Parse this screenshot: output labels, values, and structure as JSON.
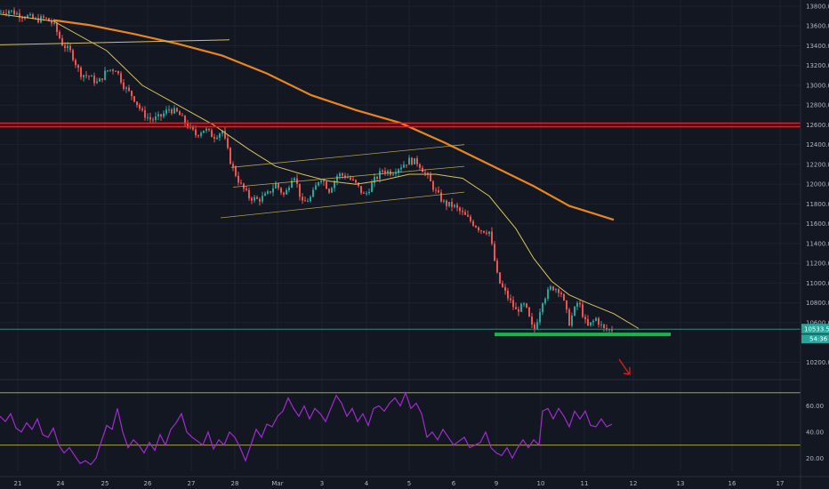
{
  "colors": {
    "background": "#131722",
    "grid": "#1e2230",
    "candle_up": "#26a69a",
    "candle_down": "#ef5350",
    "ma_long": "#e8861d",
    "ma_short": "#d8c15a",
    "resistance": "#e91e1e",
    "support": "#15b64a",
    "rsi": "#a12bd0",
    "rsi_band": "#a4a04a",
    "current_line": "#2f8a82",
    "arrow": "#e91e1e"
  },
  "chart_data": [
    {
      "type": "candlestick",
      "title": "",
      "ylim": [
        10150,
        13900
      ],
      "y_ticks": [
        "13800.0",
        "13600.0",
        "13400.0",
        "13200.0",
        "13000.0",
        "12800.0",
        "12600.0",
        "12400.0",
        "12200.0",
        "12000.0",
        "11800.0",
        "11600.0",
        "11400.0",
        "11200.0",
        "11000.0",
        "10800.0",
        "10600.0",
        "10200.0"
      ],
      "x_ticks": [
        "21",
        "24",
        "25",
        "26",
        "27",
        "28",
        "Mar",
        "3",
        "4",
        "5",
        "6",
        "9",
        "10",
        "11",
        "12",
        "13",
        "16",
        "17"
      ],
      "price_badge": "10533.5",
      "time_badge": "54:36",
      "support_level": 10480,
      "resistance_level": 12600,
      "close_path": [
        [
          0,
          13740
        ],
        [
          10,
          13760
        ],
        [
          20,
          13720
        ],
        [
          30,
          13700
        ],
        [
          40,
          13660
        ],
        [
          50,
          13680
        ],
        [
          60,
          13620
        ],
        [
          70,
          13420
        ],
        [
          80,
          13330
        ],
        [
          90,
          13120
        ],
        [
          100,
          13090
        ],
        [
          110,
          13020
        ],
        [
          120,
          13150
        ],
        [
          130,
          13170
        ],
        [
          140,
          12980
        ],
        [
          150,
          12880
        ],
        [
          160,
          12720
        ],
        [
          170,
          12650
        ],
        [
          180,
          12680
        ],
        [
          190,
          12760
        ],
        [
          200,
          12720
        ],
        [
          210,
          12600
        ],
        [
          220,
          12500
        ],
        [
          230,
          12560
        ],
        [
          240,
          12480
        ],
        [
          250,
          12540
        ],
        [
          260,
          12200
        ],
        [
          270,
          12000
        ],
        [
          280,
          11870
        ],
        [
          290,
          11840
        ],
        [
          300,
          11890
        ],
        [
          310,
          12000
        ],
        [
          320,
          11880
        ],
        [
          330,
          12120
        ],
        [
          340,
          11800
        ],
        [
          350,
          11870
        ],
        [
          360,
          12080
        ],
        [
          370,
          11940
        ],
        [
          380,
          12100
        ],
        [
          390,
          12080
        ],
        [
          400,
          12000
        ],
        [
          410,
          11880
        ],
        [
          420,
          12030
        ],
        [
          430,
          12140
        ],
        [
          440,
          12120
        ],
        [
          450,
          12180
        ],
        [
          460,
          12240
        ],
        [
          470,
          12220
        ],
        [
          480,
          12080
        ],
        [
          490,
          11920
        ],
        [
          500,
          11800
        ],
        [
          510,
          11780
        ],
        [
          520,
          11700
        ],
        [
          530,
          11620
        ],
        [
          540,
          11540
        ],
        [
          550,
          11520
        ],
        [
          560,
          11030
        ],
        [
          570,
          10870
        ],
        [
          580,
          10720
        ],
        [
          590,
          10780
        ],
        [
          600,
          10500
        ],
        [
          610,
          10830
        ],
        [
          620,
          10960
        ],
        [
          630,
          10930
        ],
        [
          640,
          10600
        ],
        [
          650,
          10820
        ],
        [
          660,
          10550
        ],
        [
          670,
          10640
        ],
        [
          680,
          10520
        ],
        [
          688,
          10533
        ]
      ],
      "range_line_x": [
        0,
        10,
        20,
        30,
        40,
        50,
        60,
        70,
        80,
        90,
        100,
        110,
        120,
        130,
        140,
        150,
        160,
        170,
        180,
        190,
        200,
        210,
        220,
        230,
        240,
        250,
        260,
        270,
        280,
        290,
        300,
        310,
        320,
        330,
        340,
        350,
        360,
        370,
        380,
        390,
        400,
        410,
        420,
        430,
        440,
        450,
        460,
        470,
        480,
        490,
        500,
        510,
        520,
        530,
        540,
        550,
        560,
        570,
        580,
        590,
        600,
        610,
        620,
        630,
        640,
        650,
        660,
        670,
        680
      ],
      "ma_short": [
        [
          0,
          13720
        ],
        [
          60,
          13650
        ],
        [
          120,
          13350
        ],
        [
          160,
          13000
        ],
        [
          200,
          12800
        ],
        [
          240,
          12600
        ],
        [
          280,
          12350
        ],
        [
          310,
          12180
        ],
        [
          340,
          12100
        ],
        [
          370,
          12030
        ],
        [
          400,
          12000
        ],
        [
          430,
          12040
        ],
        [
          460,
          12100
        ],
        [
          490,
          12100
        ],
        [
          520,
          12060
        ],
        [
          550,
          11880
        ],
        [
          580,
          11550
        ],
        [
          600,
          11250
        ],
        [
          620,
          11020
        ],
        [
          640,
          10880
        ],
        [
          660,
          10800
        ],
        [
          690,
          10690
        ],
        [
          718,
          10540
        ]
      ],
      "ma_long": [
        [
          60,
          13660
        ],
        [
          100,
          13610
        ],
        [
          150,
          13520
        ],
        [
          200,
          13420
        ],
        [
          250,
          13300
        ],
        [
          300,
          13120
        ],
        [
          350,
          12900
        ],
        [
          400,
          12750
        ],
        [
          450,
          12620
        ],
        [
          500,
          12420
        ],
        [
          550,
          12200
        ],
        [
          600,
          11980
        ],
        [
          640,
          11780
        ],
        [
          690,
          11640
        ]
      ],
      "trend_line": [
        [
          0,
          13410
        ],
        [
          258,
          13460
        ]
      ],
      "channel_upper": [
        [
          260,
          12170
        ],
        [
          522,
          12400
        ]
      ],
      "channel_mid": [
        [
          262,
          11970
        ],
        [
          522,
          12180
        ]
      ],
      "channel_lower": [
        [
          248,
          11660
        ],
        [
          522,
          11920
        ]
      ]
    },
    {
      "type": "line",
      "title": "",
      "ylim": [
        10,
        78
      ],
      "y_ticks": [
        "60.00",
        "40.00",
        "20.00"
      ],
      "upper_band": 70,
      "lower_band": 30,
      "series": [
        {
          "values": [
            [
              0,
              52
            ],
            [
              6,
              48
            ],
            [
              12,
              54
            ],
            [
              18,
              43
            ],
            [
              24,
              40
            ],
            [
              30,
              47
            ],
            [
              36,
              42
            ],
            [
              42,
              50
            ],
            [
              48,
              38
            ],
            [
              54,
              36
            ],
            [
              60,
              43
            ],
            [
              66,
              30
            ],
            [
              72,
              24
            ],
            [
              78,
              28
            ],
            [
              84,
              22
            ],
            [
              90,
              16
            ],
            [
              96,
              18
            ],
            [
              102,
              15
            ],
            [
              108,
              20
            ],
            [
              114,
              33
            ],
            [
              120,
              45
            ],
            [
              126,
              42
            ],
            [
              132,
              58
            ],
            [
              138,
              40
            ],
            [
              144,
              28
            ],
            [
              150,
              34
            ],
            [
              156,
              30
            ],
            [
              162,
              24
            ],
            [
              168,
              32
            ],
            [
              174,
              26
            ],
            [
              180,
              38
            ],
            [
              186,
              30
            ],
            [
              192,
              42
            ],
            [
              198,
              47
            ],
            [
              204,
              54
            ],
            [
              210,
              40
            ],
            [
              216,
              36
            ],
            [
              222,
              33
            ],
            [
              228,
              30
            ],
            [
              234,
              40
            ],
            [
              240,
              27
            ],
            [
              246,
              34
            ],
            [
              252,
              30
            ],
            [
              258,
              40
            ],
            [
              264,
              36
            ],
            [
              270,
              28
            ],
            [
              276,
              18
            ],
            [
              282,
              30
            ],
            [
              288,
              42
            ],
            [
              294,
              36
            ],
            [
              300,
              46
            ],
            [
              306,
              44
            ],
            [
              312,
              52
            ],
            [
              318,
              56
            ],
            [
              324,
              66
            ],
            [
              330,
              58
            ],
            [
              336,
              52
            ],
            [
              342,
              60
            ],
            [
              348,
              50
            ],
            [
              354,
              58
            ],
            [
              360,
              54
            ],
            [
              366,
              48
            ],
            [
              372,
              58
            ],
            [
              378,
              68
            ],
            [
              384,
              62
            ],
            [
              390,
              52
            ],
            [
              396,
              58
            ],
            [
              402,
              48
            ],
            [
              408,
              54
            ],
            [
              414,
              45
            ],
            [
              420,
              58
            ],
            [
              426,
              60
            ],
            [
              432,
              56
            ],
            [
              438,
              62
            ],
            [
              444,
              66
            ],
            [
              450,
              60
            ],
            [
              456,
              70
            ],
            [
              462,
              58
            ],
            [
              468,
              62
            ],
            [
              474,
              54
            ],
            [
              480,
              36
            ],
            [
              486,
              40
            ],
            [
              492,
              34
            ],
            [
              498,
              42
            ],
            [
              504,
              36
            ],
            [
              510,
              30
            ],
            [
              516,
              33
            ],
            [
              522,
              36
            ],
            [
              528,
              28
            ],
            [
              534,
              30
            ],
            [
              540,
              32
            ],
            [
              546,
              40
            ],
            [
              552,
              28
            ],
            [
              558,
              24
            ],
            [
              564,
              22
            ],
            [
              570,
              28
            ],
            [
              576,
              20
            ],
            [
              582,
              28
            ],
            [
              588,
              34
            ],
            [
              594,
              28
            ],
            [
              600,
              34
            ],
            [
              606,
              30
            ],
            [
              610,
              56
            ],
            [
              616,
              58
            ],
            [
              622,
              50
            ],
            [
              628,
              58
            ],
            [
              634,
              52
            ],
            [
              640,
              44
            ],
            [
              646,
              56
            ],
            [
              652,
              50
            ],
            [
              658,
              56
            ],
            [
              664,
              45
            ],
            [
              670,
              44
            ],
            [
              676,
              50
            ],
            [
              682,
              44
            ],
            [
              688,
              46
            ]
          ]
        }
      ]
    }
  ]
}
